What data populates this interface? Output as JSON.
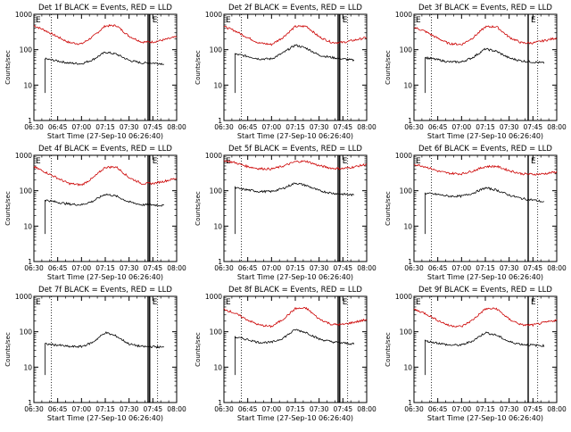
{
  "page": {
    "background": "#ffffff"
  },
  "chart_data": [
    {
      "type": "line",
      "title": "Det 1f BLACK = Events, RED = LLD",
      "xlabel": "Start Time (27-Sep-10 06:26:40)",
      "ylabel": "Counts/sec",
      "yscale": "log",
      "ylim": [
        1,
        1000
      ],
      "xlim": [
        "06:30",
        "08:00"
      ],
      "x_ticks": [
        "06:30",
        "06:45",
        "07:00",
        "07:15",
        "07:30",
        "07:45",
        "08:00"
      ],
      "y_ticks": [
        "1",
        "10",
        "100",
        "1000"
      ],
      "grid": false,
      "markers": [
        "E",
        "E"
      ],
      "dotted_lines": [
        "06:41",
        "07:48"
      ],
      "bars": [
        "07:42",
        "07:43"
      ],
      "series": [
        {
          "color": "#cc0000",
          "x": [
            "06:30",
            "06:37",
            "06:45",
            "06:52",
            "07:00",
            "07:07",
            "07:15",
            "07:22",
            "07:30",
            "07:38",
            "07:45",
            "07:52",
            "08:00"
          ],
          "y": [
            480,
            350,
            230,
            160,
            145,
            230,
            470,
            480,
            240,
            165,
            165,
            190,
            230
          ]
        },
        {
          "color": "#000000",
          "x": [
            "06:37",
            "06:45",
            "06:52",
            "07:00",
            "07:07",
            "07:15",
            "07:22",
            "07:30",
            "07:38",
            "07:45",
            "07:52"
          ],
          "y": [
            55,
            48,
            42,
            40,
            52,
            85,
            75,
            50,
            42,
            42,
            40
          ]
        }
      ]
    },
    {
      "type": "line",
      "title": "Det 2f BLACK = Events, RED = LLD",
      "xlabel": "Start Time (27-Sep-10 06:26:40)",
      "ylabel": "Counts/sec",
      "yscale": "log",
      "ylim": [
        1,
        1000
      ],
      "xlim": [
        "06:30",
        "08:00"
      ],
      "x_ticks": [
        "06:30",
        "06:45",
        "07:00",
        "07:15",
        "07:30",
        "07:45",
        "08:00"
      ],
      "y_ticks": [
        "1",
        "10",
        "100",
        "1000"
      ],
      "grid": false,
      "markers": [
        "E",
        "E"
      ],
      "dotted_lines": [
        "06:41",
        "07:48"
      ],
      "bars": [
        "07:42",
        "07:43"
      ],
      "series": [
        {
          "color": "#cc0000",
          "x": [
            "06:30",
            "06:37",
            "06:45",
            "06:52",
            "07:00",
            "07:07",
            "07:15",
            "07:22",
            "07:30",
            "07:38",
            "07:45",
            "07:52",
            "08:00"
          ],
          "y": [
            450,
            340,
            220,
            155,
            140,
            220,
            450,
            460,
            230,
            160,
            160,
            185,
            220
          ]
        },
        {
          "color": "#000000",
          "x": [
            "06:37",
            "06:45",
            "06:52",
            "07:00",
            "07:07",
            "07:15",
            "07:22",
            "07:30",
            "07:38",
            "07:45",
            "07:52"
          ],
          "y": [
            75,
            65,
            55,
            55,
            80,
            135,
            110,
            70,
            60,
            55,
            50
          ]
        }
      ]
    },
    {
      "type": "line",
      "title": "Det 3f BLACK = Events, RED = LLD",
      "xlabel": "Start Time (27-Sep-10 06:26:40)",
      "ylabel": "Counts/sec",
      "yscale": "log",
      "ylim": [
        1,
        1000
      ],
      "xlim": [
        "06:30",
        "08:00"
      ],
      "x_ticks": [
        "06:30",
        "06:45",
        "07:00",
        "07:15",
        "07:30",
        "07:45",
        "08:00"
      ],
      "y_ticks": [
        "1",
        "10",
        "100",
        "1000"
      ],
      "grid": false,
      "markers": [
        "E",
        "E"
      ],
      "dotted_lines": [
        "06:41",
        "07:48"
      ],
      "bars": [
        "07:42"
      ],
      "series": [
        {
          "color": "#cc0000",
          "x": [
            "06:30",
            "06:37",
            "06:45",
            "06:52",
            "07:00",
            "07:07",
            "07:15",
            "07:22",
            "07:30",
            "07:38",
            "07:45",
            "07:52",
            "08:00"
          ],
          "y": [
            430,
            330,
            210,
            150,
            140,
            215,
            440,
            450,
            225,
            155,
            155,
            180,
            215
          ]
        },
        {
          "color": "#000000",
          "x": [
            "06:37",
            "06:45",
            "06:52",
            "07:00",
            "07:07",
            "07:15",
            "07:22",
            "07:30",
            "07:38",
            "07:45",
            "07:52"
          ],
          "y": [
            60,
            52,
            45,
            45,
            60,
            105,
            90,
            58,
            48,
            45,
            42
          ]
        }
      ]
    },
    {
      "type": "line",
      "title": "Det 4f BLACK = Events, RED = LLD",
      "xlabel": "Start Time (27-Sep-10 06:26:40)",
      "ylabel": "Counts/sec",
      "yscale": "log",
      "ylim": [
        1,
        1000
      ],
      "xlim": [
        "06:30",
        "08:00"
      ],
      "x_ticks": [
        "06:30",
        "06:45",
        "07:00",
        "07:15",
        "07:30",
        "07:45",
        "08:00"
      ],
      "y_ticks": [
        "1",
        "10",
        "100",
        "1000"
      ],
      "grid": false,
      "markers": [
        "E",
        "E"
      ],
      "dotted_lines": [
        "06:41",
        "07:48"
      ],
      "bars": [
        "07:42",
        "07:43"
      ],
      "series": [
        {
          "color": "#cc0000",
          "x": [
            "06:30",
            "06:37",
            "06:45",
            "06:52",
            "07:00",
            "07:07",
            "07:15",
            "07:22",
            "07:30",
            "07:38",
            "07:45",
            "07:52",
            "08:00"
          ],
          "y": [
            470,
            340,
            225,
            160,
            145,
            225,
            460,
            470,
            235,
            160,
            160,
            185,
            225
          ]
        },
        {
          "color": "#000000",
          "x": [
            "06:37",
            "06:45",
            "06:52",
            "07:00",
            "07:07",
            "07:15",
            "07:22",
            "07:30",
            "07:38",
            "07:45",
            "07:52"
          ],
          "y": [
            55,
            47,
            42,
            40,
            50,
            80,
            70,
            48,
            40,
            40,
            38
          ]
        }
      ]
    },
    {
      "type": "line",
      "title": "Det 5f BLACK = Events, RED = LLD",
      "xlabel": "Start Time (27-Sep-10 06:26:40)",
      "ylabel": "Counts/sec",
      "yscale": "log",
      "ylim": [
        1,
        1000
      ],
      "xlim": [
        "06:30",
        "08:00"
      ],
      "x_ticks": [
        "06:30",
        "06:45",
        "07:00",
        "07:15",
        "07:30",
        "07:45",
        "08:00"
      ],
      "y_ticks": [
        "1",
        "10",
        "100",
        "1000"
      ],
      "grid": false,
      "markers": [
        "E",
        "E"
      ],
      "dotted_lines": [
        "06:41",
        "07:48"
      ],
      "bars": [
        "07:42",
        "07:43"
      ],
      "series": [
        {
          "color": "#cc0000",
          "x": [
            "06:30",
            "06:37",
            "06:45",
            "06:52",
            "07:00",
            "07:07",
            "07:15",
            "07:22",
            "07:30",
            "07:38",
            "07:45",
            "07:52",
            "08:00"
          ],
          "y": [
            720,
            620,
            480,
            420,
            410,
            490,
            660,
            680,
            510,
            430,
            420,
            470,
            560
          ]
        },
        {
          "color": "#000000",
          "x": [
            "06:37",
            "06:45",
            "06:52",
            "07:00",
            "07:07",
            "07:15",
            "07:22",
            "07:30",
            "07:38",
            "07:45",
            "07:52"
          ],
          "y": [
            120,
            105,
            95,
            95,
            115,
            165,
            140,
            100,
            85,
            80,
            75
          ]
        }
      ]
    },
    {
      "type": "line",
      "title": "Det 6f BLACK = Events, RED = LLD",
      "xlabel": "Start Time (27-Sep-10 06:26:40)",
      "ylabel": "Counts/sec",
      "yscale": "log",
      "ylim": [
        1,
        1000
      ],
      "xlim": [
        "06:30",
        "08:00"
      ],
      "x_ticks": [
        "06:30",
        "06:45",
        "07:00",
        "07:15",
        "07:30",
        "07:45",
        "08:00"
      ],
      "y_ticks": [
        "1",
        "10",
        "100",
        "1000"
      ],
      "grid": false,
      "markers": [
        "E",
        "E"
      ],
      "dotted_lines": [
        "06:41",
        "07:48"
      ],
      "bars": [
        "07:42"
      ],
      "series": [
        {
          "color": "#cc0000",
          "x": [
            "06:30",
            "06:37",
            "06:45",
            "06:52",
            "07:00",
            "07:07",
            "07:15",
            "07:22",
            "07:30",
            "07:38",
            "07:45",
            "07:52",
            "08:00"
          ],
          "y": [
            560,
            480,
            360,
            310,
            300,
            360,
            480,
            490,
            370,
            300,
            290,
            300,
            340
          ]
        },
        {
          "color": "#000000",
          "x": [
            "06:37",
            "06:45",
            "06:52",
            "07:00",
            "07:07",
            "07:15",
            "07:22",
            "07:30",
            "07:38",
            "07:45",
            "07:52"
          ],
          "y": [
            85,
            78,
            70,
            70,
            85,
            120,
            105,
            75,
            60,
            55,
            48
          ]
        }
      ]
    },
    {
      "type": "line",
      "title": "Det 7f BLACK = Events, RED = LLD",
      "xlabel": "Start Time (27-Sep-10 06:26:40)",
      "ylabel": "Counts/sec",
      "yscale": "log",
      "ylim": [
        1,
        1000
      ],
      "xlim": [
        "06:30",
        "08:00"
      ],
      "x_ticks": [
        "06:30",
        "06:45",
        "07:00",
        "07:15",
        "07:30",
        "07:45",
        "08:00"
      ],
      "y_ticks": [
        "1",
        "10",
        "100",
        "1000"
      ],
      "grid": false,
      "markers": [
        "E",
        "E"
      ],
      "dotted_lines": [
        "06:41",
        "07:48"
      ],
      "bars": [
        "07:42",
        "07:43"
      ],
      "series": [
        {
          "color": "#000000",
          "x": [
            "06:37",
            "06:45",
            "06:52",
            "07:00",
            "07:07",
            "07:15",
            "07:22",
            "07:30",
            "07:38",
            "07:45",
            "07:52"
          ],
          "y": [
            45,
            42,
            38,
            38,
            50,
            95,
            75,
            45,
            38,
            38,
            36
          ]
        }
      ]
    },
    {
      "type": "line",
      "title": "Det 8f BLACK = Events, RED = LLD",
      "xlabel": "Start Time (27-Sep-10 06:26:40)",
      "ylabel": "Counts/sec",
      "yscale": "log",
      "ylim": [
        1,
        1000
      ],
      "xlim": [
        "06:30",
        "08:00"
      ],
      "x_ticks": [
        "06:30",
        "06:45",
        "07:00",
        "07:15",
        "07:30",
        "07:45",
        "08:00"
      ],
      "y_ticks": [
        "1",
        "10",
        "100",
        "1000"
      ],
      "grid": false,
      "markers": [
        "E",
        "E"
      ],
      "dotted_lines": [
        "06:41",
        "07:48"
      ],
      "bars": [
        "07:42",
        "07:43"
      ],
      "series": [
        {
          "color": "#cc0000",
          "x": [
            "06:30",
            "06:37",
            "06:45",
            "06:52",
            "07:00",
            "07:07",
            "07:15",
            "07:22",
            "07:30",
            "07:38",
            "07:45",
            "07:52",
            "08:00"
          ],
          "y": [
            440,
            330,
            215,
            155,
            140,
            220,
            450,
            460,
            230,
            160,
            160,
            185,
            220
          ]
        },
        {
          "color": "#000000",
          "x": [
            "06:37",
            "06:45",
            "06:52",
            "07:00",
            "07:07",
            "07:15",
            "07:22",
            "07:30",
            "07:38",
            "07:45",
            "07:52"
          ],
          "y": [
            70,
            60,
            50,
            50,
            65,
            115,
            95,
            62,
            52,
            48,
            45
          ]
        }
      ]
    },
    {
      "type": "line",
      "title": "Det 9f BLACK = Events, RED = LLD",
      "xlabel": "Start Time (27-Sep-10 06:26:40)",
      "ylabel": "Counts/sec",
      "yscale": "log",
      "ylim": [
        1,
        1000
      ],
      "xlim": [
        "06:30",
        "08:00"
      ],
      "x_ticks": [
        "06:30",
        "06:45",
        "07:00",
        "07:15",
        "07:30",
        "07:45",
        "08:00"
      ],
      "y_ticks": [
        "1",
        "10",
        "100",
        "1000"
      ],
      "grid": false,
      "markers": [
        "E",
        "E"
      ],
      "dotted_lines": [
        "06:41",
        "07:48"
      ],
      "bars": [
        "07:42"
      ],
      "series": [
        {
          "color": "#cc0000",
          "x": [
            "06:30",
            "06:37",
            "06:45",
            "06:52",
            "07:00",
            "07:07",
            "07:15",
            "07:22",
            "07:30",
            "07:38",
            "07:45",
            "07:52",
            "08:00"
          ],
          "y": [
            430,
            330,
            210,
            150,
            140,
            215,
            440,
            450,
            225,
            155,
            155,
            180,
            215
          ]
        },
        {
          "color": "#000000",
          "x": [
            "06:37",
            "06:45",
            "06:52",
            "07:00",
            "07:07",
            "07:15",
            "07:22",
            "07:30",
            "07:38",
            "07:45",
            "07:52"
          ],
          "y": [
            55,
            48,
            42,
            42,
            55,
            95,
            80,
            52,
            44,
            42,
            40
          ]
        }
      ]
    }
  ]
}
